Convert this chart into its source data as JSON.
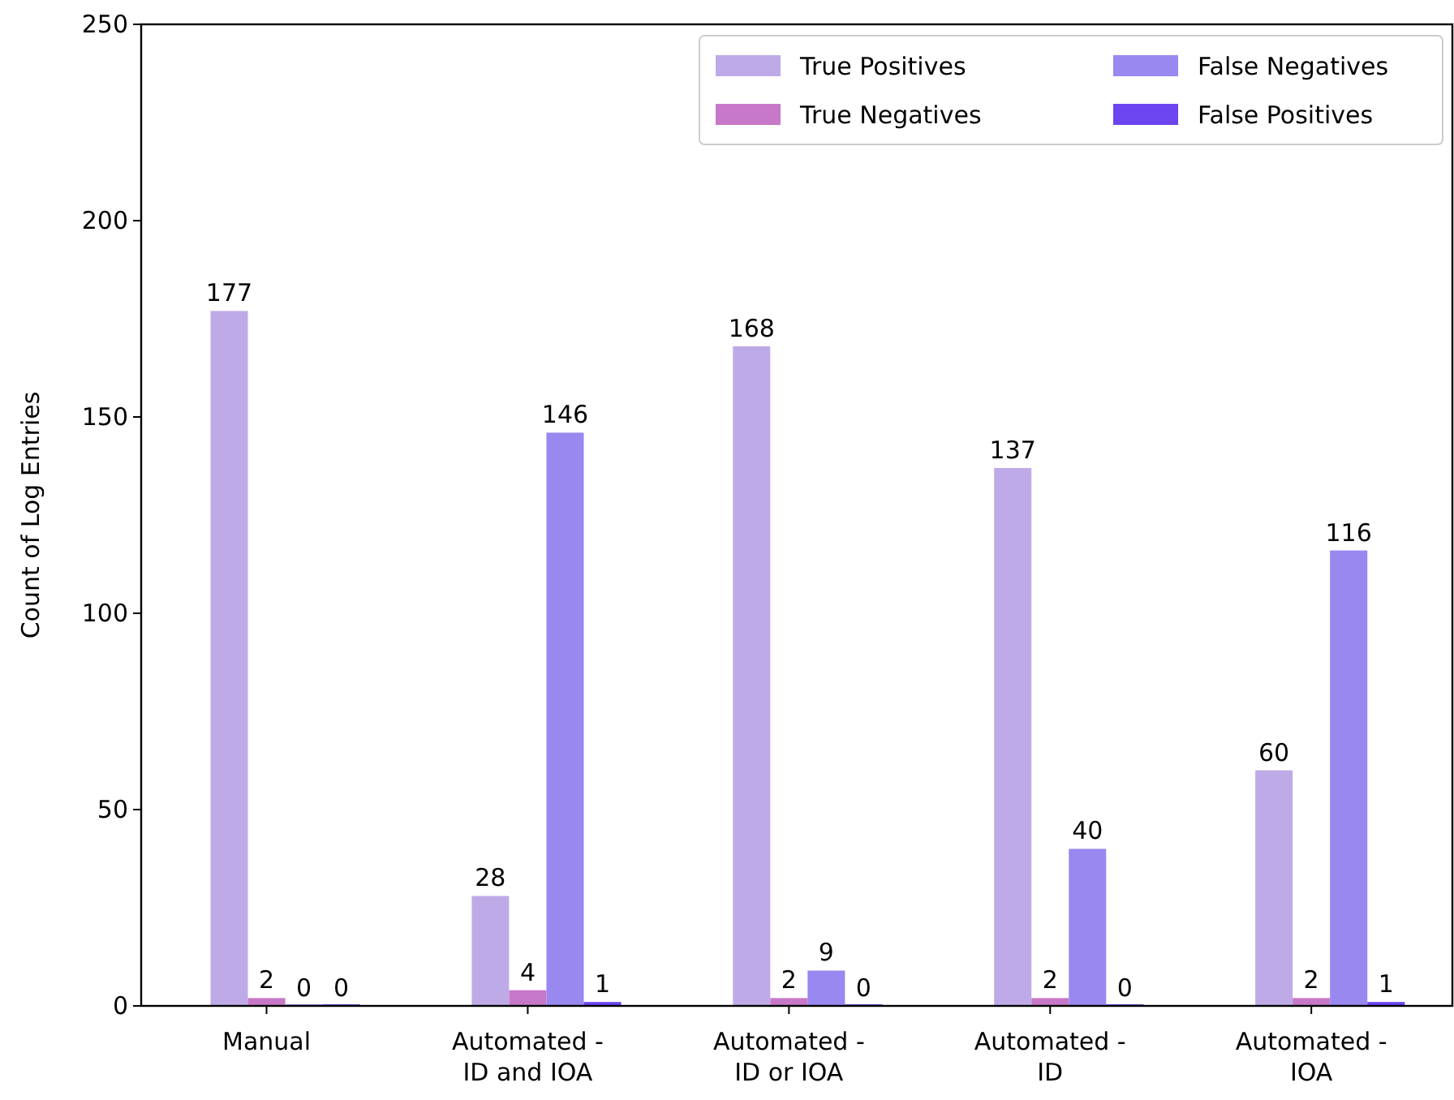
{
  "chart_data": {
    "type": "bar",
    "ylabel": "Count of Log Entries",
    "categories": [
      "Manual",
      "Automated -\nID and IOA",
      "Automated -\nID or IOA",
      "Automated -\nID",
      "Automated -\nIOA"
    ],
    "series": [
      {
        "name": "True Positives",
        "color": "#bfaae8",
        "values": [
          177,
          28,
          168,
          137,
          60
        ]
      },
      {
        "name": "True Negatives",
        "color": "#c878c8",
        "values": [
          2,
          4,
          2,
          2,
          2
        ]
      },
      {
        "name": "False Negatives",
        "color": "#9888f0",
        "values": [
          0,
          146,
          9,
          40,
          116
        ]
      },
      {
        "name": "False Positives",
        "color": "#6c44f0",
        "values": [
          0,
          1,
          0,
          0,
          1
        ]
      }
    ],
    "ylim": [
      0,
      250
    ],
    "yticks": [
      0,
      50,
      100,
      150,
      200,
      250
    ],
    "data_labels": true,
    "legend": "top right",
    "grid": false
  }
}
